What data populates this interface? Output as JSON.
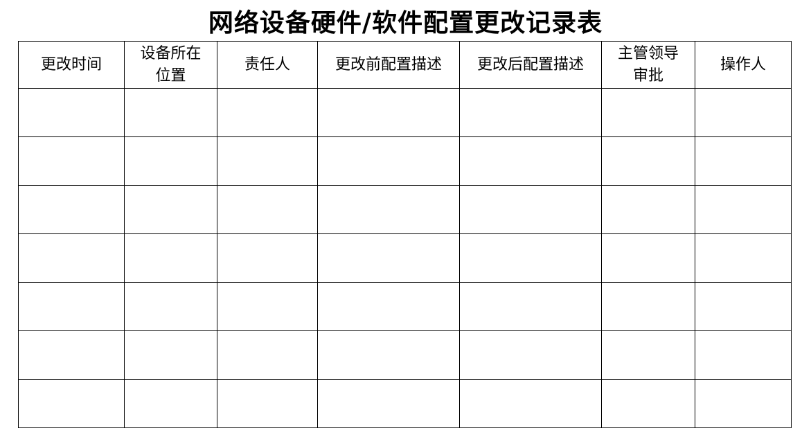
{
  "title": "网络设备硬件/软件配置更改记录表",
  "table": {
    "headers": [
      [
        "更改时间"
      ],
      [
        "设备所在",
        "位置"
      ],
      [
        "责任人"
      ],
      [
        "更改前配置描述"
      ],
      [
        "更改后配置描述"
      ],
      [
        "主管领导",
        "审批"
      ],
      [
        "操作人"
      ]
    ],
    "rows": [
      [
        "",
        "",
        "",
        "",
        "",
        "",
        ""
      ],
      [
        "",
        "",
        "",
        "",
        "",
        "",
        ""
      ],
      [
        "",
        "",
        "",
        "",
        "",
        "",
        ""
      ],
      [
        "",
        "",
        "",
        "",
        "",
        "",
        ""
      ],
      [
        "",
        "",
        "",
        "",
        "",
        "",
        ""
      ],
      [
        "",
        "",
        "",
        "",
        "",
        "",
        ""
      ],
      [
        "",
        "",
        "",
        "",
        "",
        "",
        ""
      ]
    ]
  }
}
